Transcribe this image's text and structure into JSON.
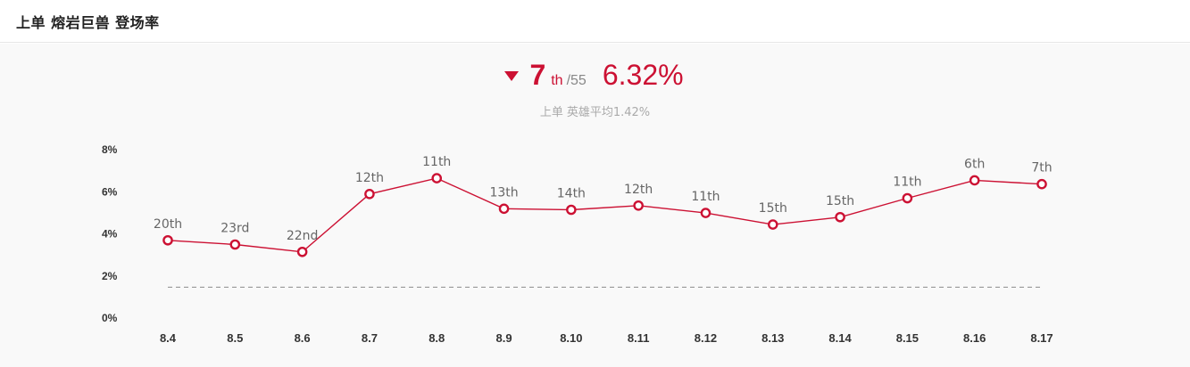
{
  "header": {
    "title": "上单 熔岩巨兽 登场率"
  },
  "summary": {
    "trend": "down",
    "rank": "7",
    "rank_suffix": "th",
    "rank_total": "/55",
    "rate": "6.32%",
    "avg_position": "上单",
    "avg_label": "英雄平均1.42%"
  },
  "colors": {
    "accent": "#cc1133",
    "average_line": "#999999"
  },
  "chart_data": {
    "type": "line",
    "title": "",
    "xlabel": "",
    "ylabel": "",
    "ylim": [
      0,
      8
    ],
    "y_ticks": [
      "0%",
      "2%",
      "4%",
      "6%",
      "8%"
    ],
    "y_tick_values": [
      0,
      2,
      4,
      6,
      8
    ],
    "grid": false,
    "categories": [
      "8.4",
      "8.5",
      "8.6",
      "8.7",
      "8.8",
      "8.9",
      "8.10",
      "8.11",
      "8.12",
      "8.13",
      "8.14",
      "8.15",
      "8.16",
      "8.17"
    ],
    "series": [
      {
        "values": [
          3.65,
          3.45,
          3.1,
          5.85,
          6.6,
          5.15,
          5.1,
          5.3,
          4.95,
          4.4,
          4.75,
          5.65,
          6.5,
          6.32
        ],
        "rank_labels": [
          "20th",
          "23rd",
          "22nd",
          "12th",
          "11th",
          "13th",
          "14th",
          "12th",
          "11th",
          "15th",
          "15th",
          "11th",
          "6th",
          "7th"
        ]
      }
    ],
    "reference_line": {
      "value": 1.42
    }
  }
}
